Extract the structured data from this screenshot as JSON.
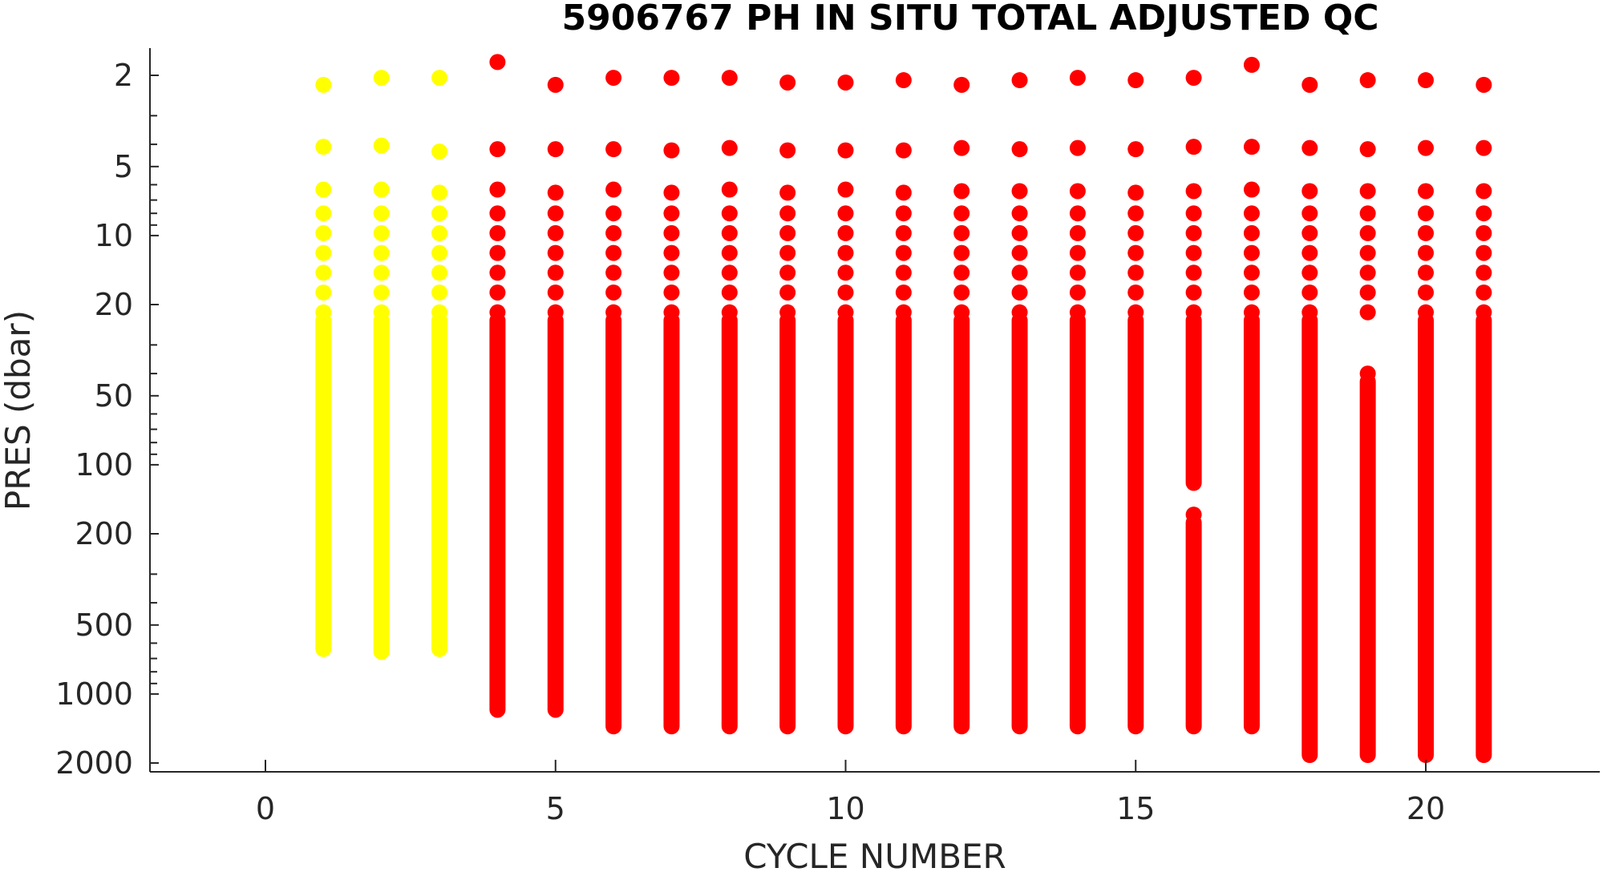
{
  "chart_data": {
    "type": "scatter",
    "title": "5906767  PH IN SITU TOTAL ADJUSTED QC",
    "xlabel": "CYCLE NUMBER",
    "ylabel": "PRES (dbar)",
    "xlim": [
      -2,
      23
    ],
    "ylim": [
      2100,
      1.5
    ],
    "y_scale": "log",
    "y_reversed": true,
    "x_ticks": [
      0,
      5,
      10,
      15,
      20
    ],
    "y_ticks": [
      2,
      5,
      10,
      20,
      50,
      100,
      200,
      500,
      1000,
      2000
    ],
    "grid": false,
    "legend": "none",
    "colors": {
      "qc1": "#ffff00",
      "qc3": "#ff0000"
    },
    "series": [
      {
        "cycle": 1,
        "color": "#ffff00",
        "top_points": [
          2.2,
          4.1,
          6.3
        ],
        "profile": [
          [
            8,
            690
          ]
        ]
      },
      {
        "cycle": 2,
        "color": "#ffff00",
        "top_points": [
          2.05,
          4.05,
          6.3
        ],
        "profile": [
          [
            8,
            710
          ]
        ]
      },
      {
        "cycle": 3,
        "color": "#ffff00",
        "top_points": [
          2.05,
          4.3,
          6.5
        ],
        "profile": [
          [
            8,
            690
          ]
        ]
      },
      {
        "cycle": 4,
        "color": "#ff0000",
        "top_points": [
          1.75,
          4.2,
          6.3
        ],
        "profile": [
          [
            8,
            1270
          ]
        ]
      },
      {
        "cycle": 5,
        "color": "#ff0000",
        "top_points": [
          2.2,
          4.2,
          6.5
        ],
        "profile": [
          [
            8,
            1270
          ]
        ]
      },
      {
        "cycle": 6,
        "color": "#ff0000",
        "top_points": [
          2.05,
          4.2,
          6.3
        ],
        "profile": [
          [
            8,
            1500
          ]
        ]
      },
      {
        "cycle": 7,
        "color": "#ff0000",
        "top_points": [
          2.05,
          4.25,
          6.5
        ],
        "profile": [
          [
            8,
            1500
          ]
        ]
      },
      {
        "cycle": 8,
        "color": "#ff0000",
        "top_points": [
          2.05,
          4.15,
          6.3
        ],
        "profile": [
          [
            8,
            1500
          ]
        ]
      },
      {
        "cycle": 9,
        "color": "#ff0000",
        "top_points": [
          2.15,
          4.25,
          6.5
        ],
        "profile": [
          [
            8,
            1500
          ]
        ]
      },
      {
        "cycle": 10,
        "color": "#ff0000",
        "top_points": [
          2.15,
          4.25,
          6.3
        ],
        "profile": [
          [
            8,
            1500
          ]
        ]
      },
      {
        "cycle": 11,
        "color": "#ff0000",
        "top_points": [
          2.1,
          4.25,
          6.5
        ],
        "profile": [
          [
            8,
            1500
          ]
        ]
      },
      {
        "cycle": 12,
        "color": "#ff0000",
        "top_points": [
          2.2,
          4.15,
          6.4
        ],
        "profile": [
          [
            8,
            1500
          ]
        ]
      },
      {
        "cycle": 13,
        "color": "#ff0000",
        "top_points": [
          2.1,
          4.2,
          6.4
        ],
        "profile": [
          [
            8,
            1500
          ]
        ]
      },
      {
        "cycle": 14,
        "color": "#ff0000",
        "top_points": [
          2.05,
          4.15,
          6.4
        ],
        "profile": [
          [
            8,
            1500
          ]
        ]
      },
      {
        "cycle": 15,
        "color": "#ff0000",
        "top_points": [
          2.1,
          4.2,
          6.5
        ],
        "profile": [
          [
            8,
            1500
          ]
        ]
      },
      {
        "cycle": 16,
        "color": "#ff0000",
        "top_points": [
          2.05,
          4.1,
          6.4
        ],
        "profile": [
          [
            8,
            130
          ],
          [
            165,
            1500
          ]
        ]
      },
      {
        "cycle": 17,
        "color": "#ff0000",
        "top_points": [
          1.8,
          4.1,
          6.3
        ],
        "profile": [
          [
            8,
            1500
          ]
        ]
      },
      {
        "cycle": 18,
        "color": "#ff0000",
        "top_points": [
          2.2,
          4.15,
          6.4
        ],
        "profile": [
          [
            8,
            2000
          ]
        ]
      },
      {
        "cycle": 19,
        "color": "#ff0000",
        "top_points": [
          2.1,
          4.2,
          6.4
        ],
        "profile": [
          [
            8,
            22
          ],
          [
            40,
            2000
          ]
        ]
      },
      {
        "cycle": 20,
        "color": "#ff0000",
        "top_points": [
          2.1,
          4.15,
          6.4
        ],
        "profile": [
          [
            8,
            2000
          ]
        ]
      },
      {
        "cycle": 21,
        "color": "#ff0000",
        "top_points": [
          2.2,
          4.15,
          6.4
        ],
        "profile": [
          [
            8,
            2000
          ]
        ]
      }
    ]
  }
}
